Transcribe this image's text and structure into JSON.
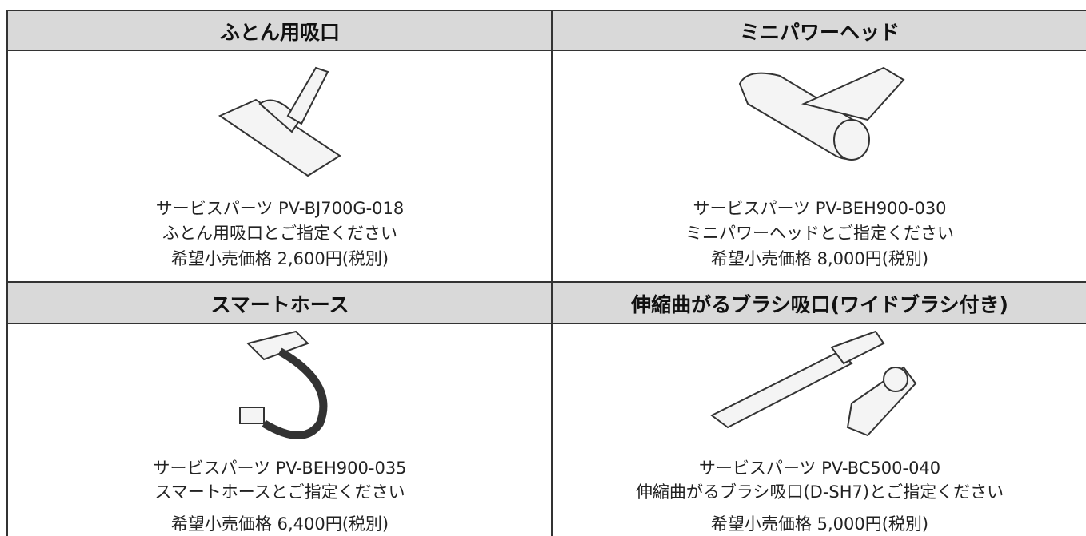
{
  "items": [
    {
      "title": "ふとん用吸口",
      "part": "サービスパーツ PV-BJ700G-018",
      "note": "ふとん用吸口とご指定ください",
      "price": "希望小売価格 2,600円(税別)"
    },
    {
      "title": "ミニパワーヘッド",
      "part": "サービスパーツ PV-BEH900-030",
      "note": "ミニパワーヘッドとご指定ください",
      "price": "希望小売価格 8,000円(税別)"
    },
    {
      "title": "スマートホース",
      "part": "サービスパーツ PV-BEH900-035",
      "note": "スマートホースとご指定ください",
      "price": "希望小売価格 6,400円(税別)"
    },
    {
      "title": "伸縮曲がるブラシ吸口(ワイドブラシ付き)",
      "part": "サービスパーツ PV-BC500-040",
      "note": "伸縮曲がるブラシ吸口(D-SH7)とご指定ください",
      "price": "希望小売価格 5,000円(税別)"
    }
  ]
}
